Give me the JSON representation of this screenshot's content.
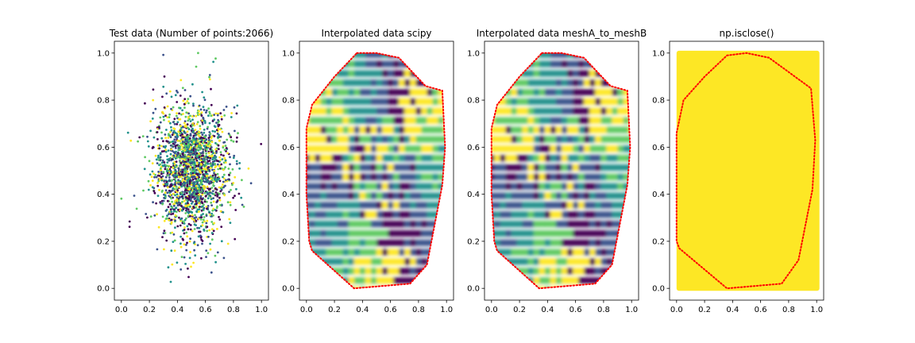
{
  "chart_data": [
    {
      "type": "scatter",
      "title": "Test data (Number of points:2066)",
      "xlabel": "",
      "ylabel": "",
      "xlim": [
        -0.05,
        1.05
      ],
      "ylim": [
        -0.05,
        1.05
      ],
      "xticks": [
        "0.0",
        "0.2",
        "0.4",
        "0.6",
        "0.8",
        "1.0"
      ],
      "yticks": [
        "0.0",
        "0.2",
        "0.4",
        "0.6",
        "0.8",
        "1.0"
      ],
      "n_points": 2066,
      "distribution": {
        "center": [
          0.5,
          0.5
        ],
        "spread": [
          0.13,
          0.14
        ]
      },
      "colormap": [
        "#440154",
        "#3b528b",
        "#21918c",
        "#5ec962",
        "#fde725"
      ],
      "grid": false
    },
    {
      "type": "heatmap",
      "title": "Interpolated data scipy",
      "xlabel": "",
      "ylabel": "",
      "xlim": [
        -0.05,
        1.05
      ],
      "ylim": [
        -0.05,
        1.05
      ],
      "xticks": [
        "0.0",
        "0.2",
        "0.4",
        "0.6",
        "0.8",
        "1.0"
      ],
      "yticks": [
        "0.0",
        "0.2",
        "0.4",
        "0.6",
        "0.8",
        "1.0"
      ],
      "colormap": [
        "#440154",
        "#3b528b",
        "#21918c",
        "#5ec962",
        "#fde725"
      ],
      "hull_color": "#ff0000",
      "hull": [
        [
          0.36,
          1.0
        ],
        [
          0.5,
          1.0
        ],
        [
          0.66,
          0.98
        ],
        [
          0.85,
          0.86
        ],
        [
          0.97,
          0.84
        ],
        [
          0.99,
          0.6
        ],
        [
          0.97,
          0.44
        ],
        [
          0.86,
          0.1
        ],
        [
          0.74,
          0.02
        ],
        [
          0.34,
          0.0
        ],
        [
          0.04,
          0.16
        ],
        [
          0.02,
          0.2
        ],
        [
          0.0,
          0.4
        ],
        [
          0.0,
          0.68
        ],
        [
          0.04,
          0.78
        ],
        [
          0.2,
          0.9
        ],
        [
          0.36,
          1.0
        ]
      ],
      "grid": false
    },
    {
      "type": "heatmap",
      "title": "Interpolated data meshA_to_meshB",
      "xlabel": "",
      "ylabel": "",
      "xlim": [
        -0.05,
        1.05
      ],
      "ylim": [
        -0.05,
        1.05
      ],
      "xticks": [
        "0.0",
        "0.2",
        "0.4",
        "0.6",
        "0.8",
        "1.0"
      ],
      "yticks": [
        "0.0",
        "0.2",
        "0.4",
        "0.6",
        "0.8",
        "1.0"
      ],
      "colormap": [
        "#440154",
        "#3b528b",
        "#21918c",
        "#5ec962",
        "#fde725"
      ],
      "hull_color": "#ff0000",
      "hull": [
        [
          0.36,
          1.0
        ],
        [
          0.5,
          1.0
        ],
        [
          0.66,
          0.98
        ],
        [
          0.85,
          0.86
        ],
        [
          0.97,
          0.84
        ],
        [
          0.99,
          0.6
        ],
        [
          0.97,
          0.44
        ],
        [
          0.86,
          0.1
        ],
        [
          0.74,
          0.02
        ],
        [
          0.34,
          0.0
        ],
        [
          0.04,
          0.16
        ],
        [
          0.02,
          0.2
        ],
        [
          0.0,
          0.4
        ],
        [
          0.0,
          0.68
        ],
        [
          0.04,
          0.78
        ],
        [
          0.2,
          0.9
        ],
        [
          0.36,
          1.0
        ]
      ],
      "grid": false
    },
    {
      "type": "heatmap",
      "title": "np.isclose()",
      "xlabel": "",
      "ylabel": "",
      "xlim": [
        -0.05,
        1.05
      ],
      "ylim": [
        -0.05,
        1.05
      ],
      "xticks": [
        "0.0",
        "0.2",
        "0.4",
        "0.6",
        "0.8",
        "1.0"
      ],
      "yticks": [
        "0.0",
        "0.2",
        "0.4",
        "0.6",
        "0.8",
        "1.0"
      ],
      "fill_color": "#fde725",
      "fill_extent": {
        "x": [
          0.0,
          1.02
        ],
        "y": [
          -0.01,
          1.01
        ]
      },
      "hull_color": "#ff0000",
      "hull": [
        [
          0.36,
          0.99
        ],
        [
          0.5,
          1.0
        ],
        [
          0.66,
          0.98
        ],
        [
          0.96,
          0.85
        ],
        [
          0.99,
          0.63
        ],
        [
          0.97,
          0.42
        ],
        [
          0.87,
          0.12
        ],
        [
          0.75,
          0.02
        ],
        [
          0.36,
          0.0
        ],
        [
          0.02,
          0.17
        ],
        [
          0.0,
          0.2
        ],
        [
          0.0,
          0.66
        ],
        [
          0.05,
          0.8
        ],
        [
          0.2,
          0.9
        ],
        [
          0.36,
          0.99
        ]
      ],
      "grid": false
    }
  ]
}
